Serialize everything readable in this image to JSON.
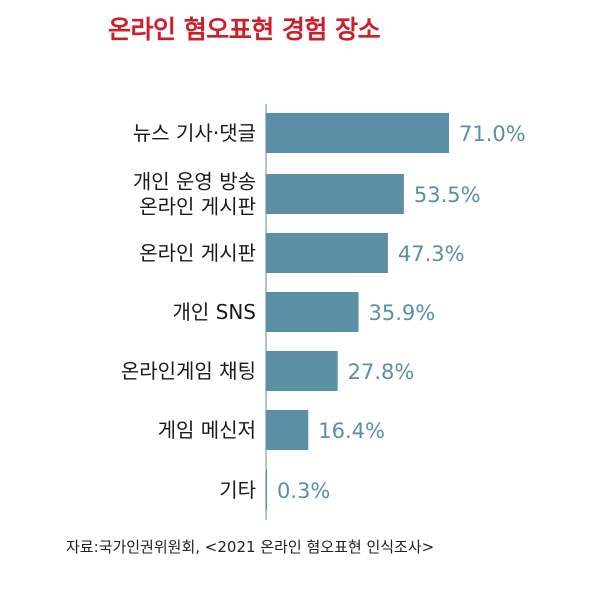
{
  "chart_data": {
    "type": "bar",
    "orientation": "horizontal",
    "title": "온라인 혐오표현 경험 장소",
    "categories": [
      [
        "뉴스 기사·댓글"
      ],
      [
        "개인 운영 방송",
        "온라인 게시판"
      ],
      [
        "온라인 게시판"
      ],
      [
        "개인 SNS"
      ],
      [
        "온라인게임 채팅"
      ],
      [
        "게임 메신저"
      ],
      [
        "기타"
      ]
    ],
    "values": [
      71.0,
      53.5,
      47.3,
      35.9,
      27.8,
      16.4,
      0.3
    ],
    "value_labels": [
      "71.0%",
      "53.5%",
      "47.3%",
      "35.9%",
      "27.8%",
      "16.4%",
      "0.3%"
    ],
    "xlim": [
      0,
      100
    ],
    "grid": false,
    "bar_color": "#5b8fa6",
    "label_color": "#5b8fa6"
  },
  "source": "자료:국가인권위원회, <2021 온라인 혐오표현 인식조사>",
  "colors": {
    "title": "#cc1f2a",
    "text": "#1a1a1a"
  }
}
